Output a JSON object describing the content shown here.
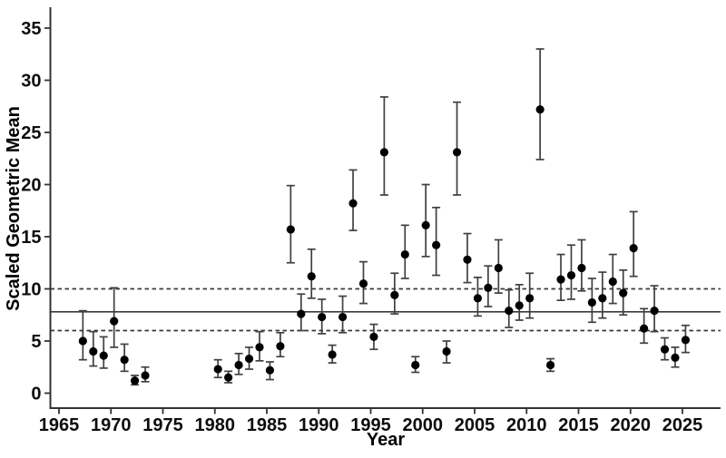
{
  "chart_data": {
    "type": "scatter",
    "subtype": "point-with-error-bars",
    "title": "",
    "xlabel": "Year",
    "ylabel": "Scaled Geometric Mean",
    "x_ticks": [
      1965,
      1970,
      1975,
      1980,
      1985,
      1990,
      1995,
      2000,
      2005,
      2010,
      2015,
      2020,
      2025
    ],
    "y_ticks": [
      0,
      5,
      10,
      15,
      20,
      25,
      30,
      35
    ],
    "xlim": [
      1963.8,
      2027
    ],
    "ylim": [
      -1.5,
      36.8
    ],
    "grid": false,
    "legend": false,
    "x_offset_years": 0.3,
    "reference_lines": [
      {
        "value": 7.8,
        "style": "solid"
      },
      {
        "value": 10.0,
        "style": "dashed"
      },
      {
        "value": 6.0,
        "style": "dashed"
      }
    ],
    "series": [
      {
        "name": "scaled-geometric-mean-by-year",
        "marker": "filled-circle",
        "points": [
          {
            "year": 1967,
            "value": 5.0,
            "lo": 3.2,
            "hi": 7.9
          },
          {
            "year": 1968,
            "value": 4.0,
            "lo": 2.6,
            "hi": 5.9
          },
          {
            "year": 1969,
            "value": 3.6,
            "lo": 2.4,
            "hi": 5.4
          },
          {
            "year": 1970,
            "value": 6.9,
            "lo": 4.4,
            "hi": 10.1
          },
          {
            "year": 1971,
            "value": 3.2,
            "lo": 2.1,
            "hi": 4.7
          },
          {
            "year": 1972,
            "value": 1.2,
            "lo": 0.8,
            "hi": 1.7
          },
          {
            "year": 1973,
            "value": 1.7,
            "lo": 1.1,
            "hi": 2.5
          },
          {
            "year": 1980,
            "value": 2.3,
            "lo": 1.5,
            "hi": 3.2
          },
          {
            "year": 1981,
            "value": 1.5,
            "lo": 1.0,
            "hi": 2.1
          },
          {
            "year": 1982,
            "value": 2.7,
            "lo": 1.8,
            "hi": 3.8
          },
          {
            "year": 1983,
            "value": 3.3,
            "lo": 2.3,
            "hi": 4.4
          },
          {
            "year": 1984,
            "value": 4.4,
            "lo": 3.1,
            "hi": 5.9
          },
          {
            "year": 1985,
            "value": 2.2,
            "lo": 1.3,
            "hi": 3.0
          },
          {
            "year": 1986,
            "value": 4.5,
            "lo": 3.5,
            "hi": 5.8
          },
          {
            "year": 1987,
            "value": 15.7,
            "lo": 12.5,
            "hi": 19.9
          },
          {
            "year": 1988,
            "value": 7.6,
            "lo": 6.0,
            "hi": 9.5
          },
          {
            "year": 1989,
            "value": 11.2,
            "lo": 9.1,
            "hi": 13.8
          },
          {
            "year": 1990,
            "value": 7.3,
            "lo": 5.7,
            "hi": 9.0
          },
          {
            "year": 1991,
            "value": 3.7,
            "lo": 2.9,
            "hi": 4.6
          },
          {
            "year": 1992,
            "value": 7.3,
            "lo": 5.8,
            "hi": 9.3
          },
          {
            "year": 1993,
            "value": 18.2,
            "lo": 15.6,
            "hi": 21.4
          },
          {
            "year": 1994,
            "value": 10.5,
            "lo": 8.6,
            "hi": 12.6
          },
          {
            "year": 1995,
            "value": 5.4,
            "lo": 4.2,
            "hi": 6.6
          },
          {
            "year": 1996,
            "value": 23.1,
            "lo": 19.0,
            "hi": 28.4
          },
          {
            "year": 1997,
            "value": 9.4,
            "lo": 7.6,
            "hi": 11.5
          },
          {
            "year": 1998,
            "value": 13.3,
            "lo": 11.0,
            "hi": 16.1
          },
          {
            "year": 1999,
            "value": 2.7,
            "lo": 2.0,
            "hi": 3.5
          },
          {
            "year": 2000,
            "value": 16.1,
            "lo": 13.1,
            "hi": 20.0
          },
          {
            "year": 2001,
            "value": 14.2,
            "lo": 11.3,
            "hi": 17.8
          },
          {
            "year": 2002,
            "value": 4.0,
            "lo": 2.9,
            "hi": 5.0
          },
          {
            "year": 2003,
            "value": 23.1,
            "lo": 19.0,
            "hi": 27.9
          },
          {
            "year": 2004,
            "value": 12.8,
            "lo": 10.6,
            "hi": 15.3
          },
          {
            "year": 2005,
            "value": 9.1,
            "lo": 7.4,
            "hi": 11.1
          },
          {
            "year": 2006,
            "value": 10.1,
            "lo": 8.3,
            "hi": 12.2
          },
          {
            "year": 2007,
            "value": 12.0,
            "lo": 9.6,
            "hi": 14.7
          },
          {
            "year": 2008,
            "value": 7.9,
            "lo": 6.3,
            "hi": 9.9
          },
          {
            "year": 2009,
            "value": 8.4,
            "lo": 7.0,
            "hi": 10.4
          },
          {
            "year": 2010,
            "value": 9.1,
            "lo": 7.2,
            "hi": 11.5
          },
          {
            "year": 2011,
            "value": 27.2,
            "lo": 22.4,
            "hi": 33.0
          },
          {
            "year": 2012,
            "value": 2.7,
            "lo": 2.1,
            "hi": 3.3
          },
          {
            "year": 2013,
            "value": 10.9,
            "lo": 8.9,
            "hi": 13.3
          },
          {
            "year": 2014,
            "value": 11.3,
            "lo": 9.0,
            "hi": 14.2
          },
          {
            "year": 2015,
            "value": 12.0,
            "lo": 9.8,
            "hi": 14.7
          },
          {
            "year": 2016,
            "value": 8.7,
            "lo": 6.8,
            "hi": 11.0
          },
          {
            "year": 2017,
            "value": 9.1,
            "lo": 7.2,
            "hi": 11.6
          },
          {
            "year": 2018,
            "value": 10.7,
            "lo": 8.6,
            "hi": 13.3
          },
          {
            "year": 2019,
            "value": 9.6,
            "lo": 7.5,
            "hi": 11.8
          },
          {
            "year": 2020,
            "value": 13.9,
            "lo": 11.2,
            "hi": 17.4
          },
          {
            "year": 2021,
            "value": 6.2,
            "lo": 4.8,
            "hi": 8.1
          },
          {
            "year": 2022,
            "value": 7.9,
            "lo": 5.9,
            "hi": 10.3
          },
          {
            "year": 2023,
            "value": 4.2,
            "lo": 3.2,
            "hi": 5.3
          },
          {
            "year": 2024,
            "value": 3.4,
            "lo": 2.5,
            "hi": 4.4
          },
          {
            "year": 2025,
            "value": 5.1,
            "lo": 3.9,
            "hi": 6.5
          }
        ]
      }
    ],
    "colors": {
      "background": "#ffffff",
      "point": "#000000",
      "error_bar": "#404040",
      "axis_line": "#333333",
      "reference_line": "#3a3a3a",
      "tick_text": "#0d0d0d"
    }
  }
}
